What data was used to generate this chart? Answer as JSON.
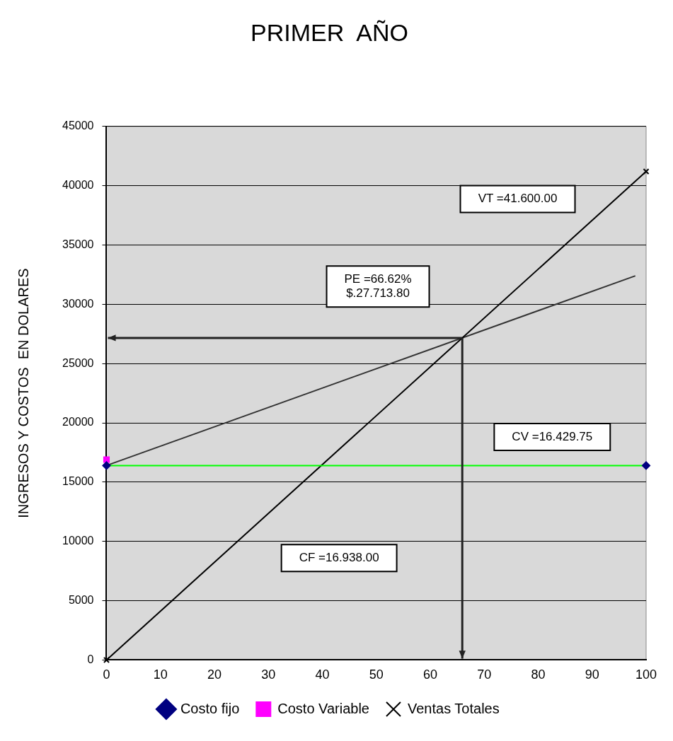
{
  "chart_data": {
    "type": "line",
    "title": "PRIMER  AÑO",
    "ylabel": "INGRESOS Y COSTOS  EN DOLARES",
    "xlim": [
      0,
      100
    ],
    "xticks": [
      0,
      10,
      20,
      30,
      40,
      50,
      60,
      70,
      80,
      90,
      100
    ],
    "ylim": [
      0,
      45000
    ],
    "yticks": [
      0,
      5000,
      10000,
      15000,
      20000,
      25000,
      30000,
      35000,
      40000,
      45000
    ],
    "grid": "y",
    "legend": "bottom",
    "series": [
      {
        "name": "Costo fijo",
        "color": "#00ff00",
        "marker": "diamond",
        "x": [
          0,
          100
        ],
        "values": [
          16400,
          16400
        ]
      },
      {
        "name": "Costo Variable",
        "type": "scatter",
        "color": "#ff00ff",
        "marker": "square",
        "x": [
          0
        ],
        "values": [
          16900
        ]
      },
      {
        "name": "Ventas Totales",
        "color": "#000000",
        "marker": "cross",
        "x": [
          0,
          100
        ],
        "values": [
          0,
          41200
        ]
      },
      {
        "color": "#333333",
        "marker": "none",
        "x": [
          0,
          98
        ],
        "values": [
          16400,
          32400
        ]
      }
    ],
    "annotations": [
      "PE =66.62%\n$.27.713.80",
      "VT =41.600.00",
      "CV =16.429.75",
      "CF =16.938.00"
    ]
  }
}
